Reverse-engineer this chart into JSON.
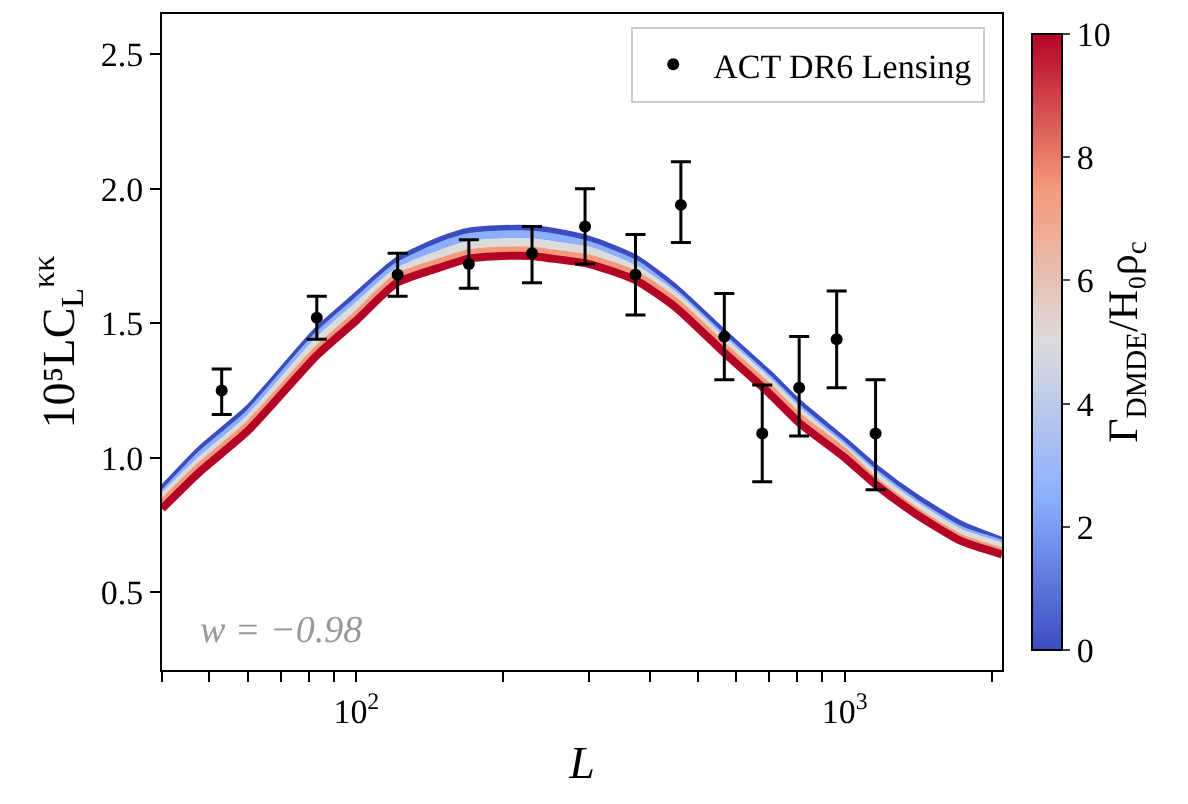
{
  "chart_data": {
    "type": "line",
    "xlabel": "L",
    "ylabel": "10⁵LC$_{L}$$^{κκ}$",
    "clabel": "Γ$_{DMDE}$/H₀ρ$_{c}$",
    "log": "x",
    "legend": "top right",
    "xlim": [
      40,
      2100
    ],
    "ylim": [
      0.21,
      2.65
    ],
    "xticks": [
      {
        "value": 40,
        "label": null
      },
      {
        "value": 50,
        "label": null
      },
      {
        "value": 60,
        "label": null
      },
      {
        "value": 70,
        "label": null
      },
      {
        "value": 80,
        "label": null
      },
      {
        "value": 90,
        "label": null
      },
      {
        "value": 100,
        "label": "10$^{2}$"
      },
      {
        "value": 200,
        "label": null
      },
      {
        "value": 300,
        "label": null
      },
      {
        "value": 400,
        "label": null
      },
      {
        "value": 500,
        "label": null
      },
      {
        "value": 600,
        "label": null
      },
      {
        "value": 700,
        "label": null
      },
      {
        "value": 800,
        "label": null
      },
      {
        "value": 900,
        "label": null
      },
      {
        "value": 1000,
        "label": "10$^{3}$"
      },
      {
        "value": 2000,
        "label": null
      }
    ],
    "yticks": [
      {
        "value": 0.5,
        "label": "0.5"
      },
      {
        "value": 1.0,
        "label": "1.0"
      },
      {
        "value": 1.5,
        "label": "1.5"
      },
      {
        "value": 2.0,
        "label": "2.0"
      },
      {
        "value": 2.5,
        "label": "2.5"
      }
    ],
    "clim": [
      0,
      10
    ],
    "cticks": [
      0,
      2,
      4,
      6,
      8,
      10
    ],
    "annotations": [
      "w = −0.98"
    ],
    "x": [
      40,
      48,
      60,
      83,
      100,
      121,
      150,
      170,
      200,
      228,
      252,
      300,
      373,
      450,
      567,
      700,
      807,
      1000,
      1157,
      1400,
      1730,
      2100
    ],
    "series": [
      {
        "color": "#3b4cc0",
        "values": [
          0.88,
          1.03,
          1.18,
          1.47,
          1.6,
          1.73,
          1.81,
          1.84,
          1.85,
          1.85,
          1.84,
          1.81,
          1.74,
          1.63,
          1.46,
          1.31,
          1.2,
          1.06,
          0.96,
          0.85,
          0.75,
          0.69
        ]
      },
      {
        "color": "#8db0fe",
        "values": [
          0.86,
          1.01,
          1.16,
          1.45,
          1.58,
          1.71,
          1.79,
          1.82,
          1.83,
          1.83,
          1.82,
          1.79,
          1.72,
          1.61,
          1.44,
          1.29,
          1.18,
          1.04,
          0.94,
          0.83,
          0.73,
          0.68
        ]
      },
      {
        "color": "#dddcdc",
        "values": [
          0.85,
          0.99,
          1.14,
          1.43,
          1.56,
          1.69,
          1.76,
          1.79,
          1.8,
          1.8,
          1.79,
          1.77,
          1.7,
          1.6,
          1.43,
          1.28,
          1.17,
          1.03,
          0.93,
          0.82,
          0.72,
          0.67
        ]
      },
      {
        "color": "#f49a7b",
        "values": [
          0.83,
          0.97,
          1.12,
          1.4,
          1.53,
          1.67,
          1.73,
          1.76,
          1.77,
          1.77,
          1.76,
          1.74,
          1.68,
          1.58,
          1.41,
          1.26,
          1.15,
          1.02,
          0.91,
          0.8,
          0.7,
          0.65
        ]
      },
      {
        "color": "#b40426",
        "values": [
          0.81,
          0.95,
          1.1,
          1.38,
          1.51,
          1.65,
          1.71,
          1.74,
          1.75,
          1.75,
          1.74,
          1.72,
          1.66,
          1.56,
          1.39,
          1.24,
          1.13,
          1.0,
          0.9,
          0.79,
          0.69,
          0.64
        ]
      },
      {
        "type": "scatter",
        "name": "ACT DR6 Lensing",
        "color": "#000000",
        "marker": "circle",
        "x": [
          53,
          83,
          121.5,
          170,
          229,
          294,
          373,
          462,
          567,
          678,
          807,
          963,
          1157
        ],
        "values": [
          1.25,
          1.52,
          1.68,
          1.72,
          1.76,
          1.86,
          1.68,
          1.94,
          1.45,
          1.09,
          1.26,
          1.44,
          1.09
        ],
        "errors": [
          [
            1.16,
            1.33
          ],
          [
            1.44,
            1.6
          ],
          [
            1.6,
            1.76
          ],
          [
            1.63,
            1.81
          ],
          [
            1.65,
            1.86
          ],
          [
            1.72,
            2.0
          ],
          [
            1.53,
            1.83
          ],
          [
            1.8,
            2.1
          ],
          [
            1.29,
            1.61
          ],
          [
            0.91,
            1.27
          ],
          [
            1.08,
            1.45
          ],
          [
            1.26,
            1.62
          ],
          [
            0.88,
            1.29
          ]
        ]
      }
    ]
  }
}
